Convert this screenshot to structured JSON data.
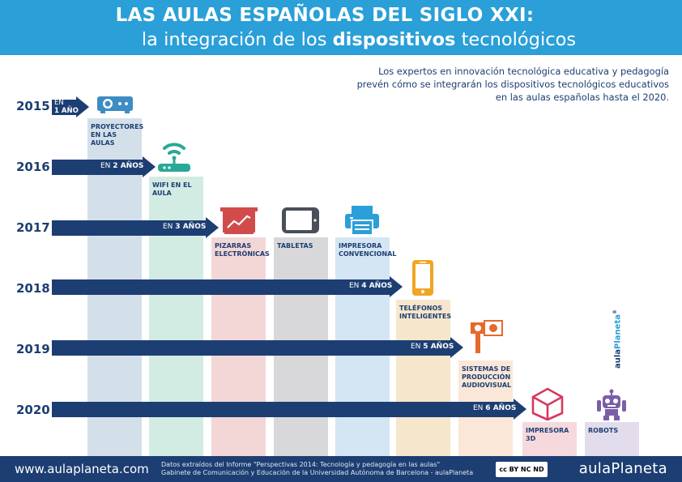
{
  "header": {
    "title_line1": "LAS AULAS ESPAÑOLAS DEL SIGLO XXI:",
    "title_line2_pre": "la integración de los ",
    "title_line2_bold": "dispositivos",
    "title_line2_post": " tecnológicos"
  },
  "intro": {
    "line1": "Los expertos en innovación tecnológica educativa y pedagogía",
    "line2": "prevén cómo se integrarán los dispositivos tecnológicos educativos",
    "line3": "en las aulas españolas hasta el 2020."
  },
  "years": [
    "2015",
    "2016",
    "2017",
    "2018",
    "2019",
    "2020"
  ],
  "arrows": [
    {
      "prefix": "EN",
      "value": "1 AÑO"
    },
    {
      "prefix": "EN",
      "value": "2 AÑOS"
    },
    {
      "prefix": "EN",
      "value": "3 AÑOS"
    },
    {
      "prefix": "EN",
      "value": "4 AÑOS"
    },
    {
      "prefix": "EN",
      "value": "5 AÑOS"
    },
    {
      "prefix": "EN",
      "value": "6 AÑOS"
    }
  ],
  "devices": [
    {
      "label_line1": "PROYECTORES",
      "label_line2": "EN LAS AULAS",
      "label_line3": "",
      "color": "#d3e0ea",
      "icon": "projector-icon"
    },
    {
      "label_line1": "WIFI EN EL",
      "label_line2": "AULA",
      "label_line3": "",
      "color": "#d2ece4",
      "icon": "wifi-router-icon"
    },
    {
      "label_line1": "PIZARRAS",
      "label_line2": "ELECTRÓNICAS",
      "label_line3": "",
      "color": "#f3d6d6",
      "icon": "whiteboard-icon"
    },
    {
      "label_line1": "TABLETAS",
      "label_line2": "",
      "label_line3": "",
      "color": "#d8d8da",
      "icon": "tablet-icon"
    },
    {
      "label_line1": "IMPRESORA",
      "label_line2": "CONVENCIONAL",
      "label_line3": "",
      "color": "#d4e6f3",
      "icon": "printer-icon"
    },
    {
      "label_line1": "TELÉFONOS",
      "label_line2": "INTELIGENTES",
      "label_line3": "",
      "color": "#f6e6cc",
      "icon": "smartphone-icon"
    },
    {
      "label_line1": "SISTEMAS DE",
      "label_line2": "PRODUCCIÓN",
      "label_line3": "AUDIOVISUAL",
      "color": "#fbe7d8",
      "icon": "video-camera-icon"
    },
    {
      "label_line1": "IMPRESORA",
      "label_line2": "3D",
      "label_line3": "",
      "color": "#f5d9dd",
      "icon": "3d-printer-icon"
    },
    {
      "label_line1": "ROBOTS",
      "label_line2": "",
      "label_line3": "",
      "color": "#e2dcec",
      "icon": "robot-icon"
    }
  ],
  "colors": {
    "header_bg": "#2a9fd8",
    "navy": "#1d3e72",
    "projector": "#3d8dc4",
    "wifi": "#2aa897",
    "whiteboard": "#d24b4b",
    "tablet": "#4a4f5a",
    "printer": "#2a9fd8",
    "phone": "#f2a522",
    "camera": "#e56a2c",
    "printer3d": "#d7385d",
    "robot": "#7a5ea8"
  },
  "vertical_brand": {
    "part1": "aula",
    "part2": "Planeta",
    "mark": "®"
  },
  "footer": {
    "url": "www.aulaplaneta.com",
    "source_line1": "Datos extraídos del Informe \"Perspectivas 2014: Tecnología y pedagogía en las aulas\"",
    "source_line2": "Gabinete de Comunicación y Educación de la Universidad Autónoma de Barcelona - aulaPlaneta",
    "cc_label": "cc BY NC ND",
    "brand": "aulaPlaneta"
  }
}
